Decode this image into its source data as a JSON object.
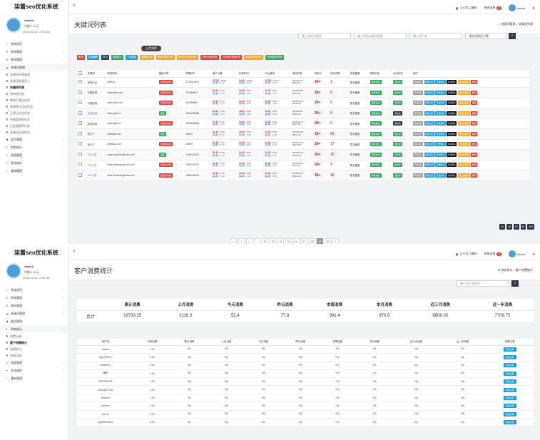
{
  "app": {
    "title": "柒蕾seo优化系统"
  },
  "user": {
    "name": "xiaorui",
    "balance": "余额:0.00元",
    "time": "2020-03-14 17:02:46",
    "topname": "xiaorui"
  },
  "topbar": {
    "wechat": "公众号二维码",
    "messages": "系统消息",
    "msg_count": "6"
  },
  "sidebar1": [
    {
      "label": "系统首页",
      "icon": "home-icon",
      "sub": []
    },
    {
      "label": "系统管理",
      "icon": "wrench-icon",
      "sub": []
    },
    {
      "label": "网站管理",
      "icon": "globe-icon",
      "sub": []
    },
    {
      "label": "关键词管理",
      "icon": "cloud-icon",
      "sub": [
        "关键词价格查询",
        "关键词批量导入",
        "关键词列表",
        "待审核任务",
        "审核不通过任务",
        "申请停止优化任务",
        "已停止优化任务",
        "申请暂停的任务",
        "已处理暂停任务",
        "关键词历史排名"
      ]
    },
    {
      "label": "会员管理",
      "icon": "users-icon",
      "sub": []
    },
    {
      "label": "财务统计",
      "icon": "money-icon",
      "sub": []
    },
    {
      "label": "充值管理",
      "icon": "card-icon",
      "sub": []
    },
    {
      "label": "优化维护",
      "icon": "tool-icon",
      "sub": []
    },
    {
      "label": "通知管理",
      "icon": "bell-icon",
      "sub": []
    }
  ],
  "sidebar2": [
    {
      "label": "系统首页",
      "icon": "home-icon",
      "sub": []
    },
    {
      "label": "系统管理",
      "icon": "wrench-icon",
      "sub": []
    },
    {
      "label": "网站管理",
      "icon": "globe-icon",
      "sub": []
    },
    {
      "label": "关键词管理",
      "icon": "cloud-icon",
      "sub": []
    },
    {
      "label": "会员管理",
      "icon": "users-icon",
      "sub": []
    },
    {
      "label": "财务统计",
      "icon": "money-icon",
      "sub": [
        "消费记录",
        "客户消费统计",
        "有偿支付",
        "充值记录"
      ]
    },
    {
      "label": "充值管理",
      "icon": "card-icon",
      "sub": []
    },
    {
      "label": "优化维护",
      "icon": "tool-icon",
      "sub": []
    },
    {
      "label": "通知管理",
      "icon": "bell-icon",
      "sub": []
    }
  ],
  "page1": {
    "title": "关键词列表",
    "bc_home": "关键词管理",
    "bc_cur": "关键词列表",
    "search": {
      "s1": "输入网站名搜索",
      "s2": "输入网站关键词搜索",
      "s3": "输入用户名",
      "s4": "请选择搜索引擎"
    },
    "upload": "上传文件",
    "actions": [
      {
        "label": "删 除",
        "color": "#e8413b"
      },
      {
        "label": "批量编辑",
        "color": "#1f9ddc"
      },
      {
        "label": "导 出",
        "color": "#2c3a4a"
      },
      {
        "label": "批量导入",
        "color": "#33ad5f"
      },
      {
        "label": "下载模板",
        "color": "#1f9ddc"
      },
      {
        "label": "待审核任务",
        "color": "#f5a623"
      },
      {
        "label": "审核不通过任务",
        "color": "#f5a623"
      },
      {
        "label": "申请停止优化任务",
        "color": "#f5a623"
      },
      {
        "label": "已停止优化任务",
        "color": "#e8413b"
      },
      {
        "label": "已申请暂停的任务",
        "color": "#e8413b"
      },
      {
        "label": "申请暂停的任务",
        "color": "#f5a623"
      },
      {
        "label": "已处理暂停任务",
        "color": "#33ad5f"
      }
    ],
    "headers": [
      "关键词",
      "网站域名",
      "搜索引擎",
      "所属用户",
      "用户价格",
      "扣费时间",
      "平台费用",
      "添加时间",
      "排名计",
      "达标天数",
      "排名截图",
      "审核状态",
      "优化状态",
      "操作"
    ],
    "ops": [
      "申请暂停",
      "消费记录",
      "历史排名",
      "补录排名",
      "修改关键词",
      "删除"
    ],
    "rows": [
      {
        "kw": "新闻大全",
        "dom": "w58.cn",
        "eng": "百度移动端",
        "engc": "#e8413b",
        "user": "2216011842",
        "t1": "首周期：3600",
        "t2": "第2期：5.00",
        "fee1": "第1期：30.00",
        "fee2": "首周期：24.00",
        "fee3": "第2期：7.00",
        "date": "2020-03-14",
        "time": "09:18:07",
        "r": "20+",
        "d": "1",
        "shot": "暂无截图",
        "aud": "审核通过",
        "opt": "优化中"
      },
      {
        "kw": "乐唐影视",
        "dom": "www.lelik.com",
        "eng": "百度移动端",
        "engc": "#e8413b",
        "user": "911856894",
        "t1": "第1期：5.00",
        "t2": "第2期：5.00",
        "fee1": "第1期：5.00",
        "fee2": "第1期：5.00",
        "fee3": "第2期：1.50",
        "date": "2020-03-14",
        "time": "09:12:41",
        "r": "20+",
        "d": "0",
        "shot": "暂无截图",
        "aud": "审核通过",
        "opt": "优化中"
      },
      {
        "kw": "乐唐影视",
        "dom": "www.lelik.com",
        "eng": "百度移动端",
        "engc": "#e8413b",
        "user": "911856894",
        "t1": "第1期：5.00",
        "t2": "第2期：5.00",
        "fee1": "第1期：5.00",
        "fee2": "第1期：5.00",
        "fee3": "第2期：1.50",
        "date": "2020-03-14",
        "time": "09:08:46",
        "r": "20+",
        "d": "0",
        "shot": "暂无截图",
        "aud": "审核通过",
        "opt": "优化中"
      },
      {
        "kw": "皮皮影视",
        "dom": "www.ppdl.cc",
        "eng": "百度",
        "engc": "#33ad5f",
        "user": "3064896365",
        "t1": "第1期：5.00",
        "t2": "第2期：5.00",
        "fee1": "第1期：5.00",
        "fee2": "第1期：5.00",
        "fee3": "第2期：1.50",
        "date": "2019-11-17",
        "time": "05:14:43",
        "r": "20+",
        "d": "0",
        "shot": "暂无截图",
        "aud": "审核通过",
        "opt": "未优化"
      },
      {
        "kw": "皮皮影视",
        "dom": "www.ppdl.cc",
        "eng": "百度移动端",
        "engc": "#e8413b",
        "user": "3064896365",
        "t1": "第1期：5.00",
        "t2": "第2期：5.00",
        "fee1": "第1期：5.00",
        "fee2": "第1期：5.00",
        "fee3": "第2期：1.50",
        "date": "2019-11-17",
        "time": "05:14:43",
        "r": "20+",
        "d": "0",
        "shot": "暂无截图",
        "aud": "审核通过",
        "opt": "未优化"
      },
      {
        "kw": "色五下",
        "dom": "setiansiu.fun",
        "eng": "百度",
        "engc": "#33ad5f",
        "user": "darker",
        "t1": "第1期：5.00",
        "t2": "第2期：5.00",
        "fee1": "第1期：5.00",
        "fee2": "第1期：5.00",
        "fee3": "第2期：1.50",
        "date": "2020-03-14",
        "time": "09:12:41",
        "r": "20+",
        "d": "63",
        "shot": "暂无截图",
        "aud": "审核通过",
        "opt": "优化中"
      },
      {
        "kw": "色五下",
        "dom": "setiansiu.fun",
        "eng": "百度移动端",
        "engc": "#e8413b",
        "user": "darker",
        "t1": "第1期：5.00",
        "t2": "第2期：5.00",
        "fee1": "第1期：5.00",
        "fee2": "第1期：5.00",
        "fee3": "第2期：1.50",
        "date": "2020-03-14",
        "time": "09:18:35",
        "r": "20+",
        "d": "17",
        "shot": "暂无截图",
        "aud": "审核通过",
        "opt": "优化中"
      },
      {
        "kw": "123小说",
        "dom": "www.xiaoshangbuka.com",
        "eng": "百度",
        "engc": "#33ad5f",
        "user": "1490116154",
        "t1": "第1期：5.00",
        "t2": "第2期：5.00",
        "fee1": "第1期：5.00",
        "fee2": "第1期：5.00",
        "fee3": "第2期：1.50",
        "date": "2020-03-14",
        "time": "09:18:35",
        "r": "20+",
        "d": "10",
        "shot": "暂无截图",
        "aud": "审核通过",
        "opt": "优化中"
      },
      {
        "kw": "123小说",
        "dom": "www.xiaoshangbuka.com",
        "eng": "百度移动端",
        "engc": "#e8413b",
        "user": "1490116154",
        "t1": "第1期：5.00",
        "t2": "第2期：5.00",
        "fee1": "第1期：5.00",
        "fee2": "第1期：5.00",
        "fee3": "第2期：1.50",
        "date": "2020-03-14",
        "time": "09:12:30",
        "r": "20+",
        "d": "9",
        "shot": "暂无截图",
        "aud": "审核通过",
        "opt": "优化中"
      },
      {
        "kw": "123小说",
        "dom": "www.xiaoshangbuka.com",
        "eng": "百度移动端",
        "engc": "#e8413b",
        "user": "1490116154",
        "t1": "第1期：5.00",
        "t2": "第2期：5.00",
        "fee1": "第1期：5.00",
        "fee2": "第1期：5.00",
        "fee3": "第2期：1.50",
        "date": "2020-03-14",
        "time": "09:12:30",
        "r": "20+",
        "d": "10",
        "shot": "暂无截图",
        "aud": "审核通过",
        "opt": "优化中"
      }
    ],
    "pages": [
      "«",
      "1",
      "2",
      "...",
      "42",
      "43",
      "44",
      "45",
      "46",
      "47",
      "48",
      "49",
      "50",
      "»"
    ],
    "active_page": "49",
    "page_sizes": [
      "10",
      "15",
      "20",
      "50",
      "100"
    ]
  },
  "page2": {
    "title": "客户消费统计",
    "bc_home": "财务统计",
    "bc_cur": "客户消费统计",
    "search": "输入用户名搜索",
    "sum_headers": [
      "",
      "累计消费",
      "上月消费",
      "今天消费",
      "昨日消费",
      "本周消费",
      "本月消费",
      "近三月消费",
      "近一年消费"
    ],
    "sum_row": [
      "合计",
      "19733.25",
      "3116.3",
      "52.4",
      "77.8",
      "391.4",
      "870.8",
      "9808.05",
      "7706.75"
    ],
    "cust_headers": [
      "用户名",
      "可用余额",
      "累计消费",
      "上月消费",
      "今日消费",
      "昨日消费",
      "本周消费",
      "本月消费",
      "近三月消费",
      "近一年消费",
      "查看记录"
    ],
    "view": "查看记录",
    "customers": [
      {
        "u": "xiaorui",
        "bal": "0.00",
        "v": "0元"
      },
      {
        "u": "qq1234174",
        "bal": "0.00",
        "v": "0元"
      },
      {
        "u": "wlc88029",
        "bal": "0.00",
        "v": "0元"
      },
      {
        "u": "埋胆",
        "bal": "0.00",
        "v": "0元"
      },
      {
        "u": "2522383528",
        "bal": "0.00",
        "v": "0元"
      },
      {
        "u": "18018827332",
        "bal": "0.00",
        "v": "0元"
      },
      {
        "u": "ahxems",
        "bal": "0.00",
        "v": "0元"
      },
      {
        "u": "Airsees",
        "bal": "0.00",
        "v": "0元"
      },
      {
        "u": "111111",
        "bal": "0.00",
        "v": "0元"
      },
      {
        "u": "qq305436299",
        "bal": "0.00",
        "v": "0元"
      }
    ]
  }
}
